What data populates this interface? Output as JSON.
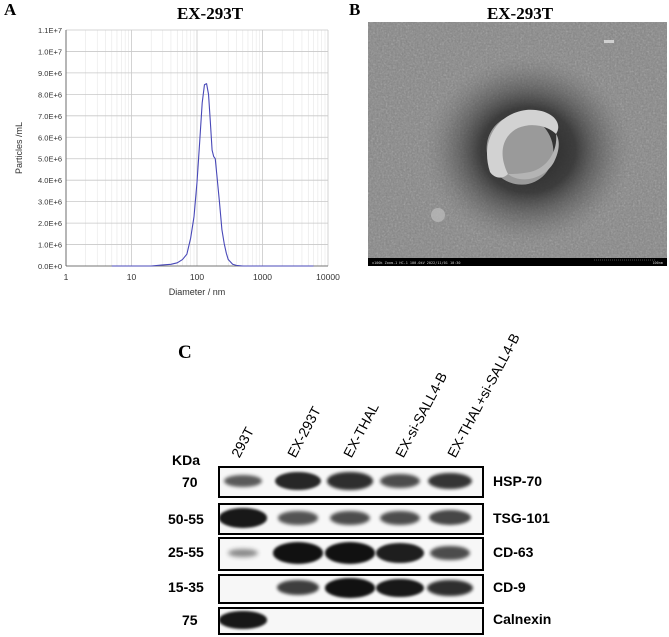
{
  "panels": {
    "a": {
      "letter": "A",
      "title": "EX-293T"
    },
    "b": {
      "letter": "B",
      "title": "EX-293T"
    },
    "c": {
      "letter": "C"
    }
  },
  "chart_data": {
    "type": "line",
    "title": "EX-293T",
    "xlabel": "Diameter / nm",
    "ylabel": "Particles /mL",
    "x_scale": "log",
    "xlim": [
      1,
      10000
    ],
    "ylim": [
      0,
      11000000
    ],
    "x_ticks": [
      "1",
      "10",
      "100",
      "1000",
      "10000"
    ],
    "y_ticks": [
      "0.0E+0",
      "1.0E+6",
      "2.0E+6",
      "3.0E+6",
      "4.0E+6",
      "5.0E+6",
      "6.0E+6",
      "7.0E+6",
      "8.0E+6",
      "9.0E+6",
      "1.0E+7",
      "1.1E+7"
    ],
    "grid": true,
    "series": [
      {
        "color": "#4848b8",
        "x": [
          5,
          10,
          20,
          30,
          40,
          50,
          60,
          70,
          80,
          90,
          100,
          110,
          120,
          130,
          140,
          150,
          160,
          170,
          180,
          190,
          200,
          220,
          240,
          260,
          280,
          300,
          350,
          400,
          500,
          700,
          1000,
          2000,
          6000
        ],
        "y": [
          0,
          0,
          0,
          50000,
          80000,
          150000,
          300000,
          550000,
          1300000,
          2300000,
          3900000,
          5800000,
          7600000,
          8450000,
          8500000,
          8000000,
          6700000,
          5400000,
          5100000,
          5000000,
          4300000,
          3000000,
          1700000,
          1050000,
          600000,
          300000,
          80000,
          30000,
          0,
          0,
          0,
          0,
          0
        ]
      }
    ]
  },
  "tem_image": {
    "caption": "x100k Zoom-1 HC-1 100.0kV 2022/11/01 10:30",
    "scale_label": "100nm",
    "colors": {
      "background": "#7d7d7d",
      "dark_halo": "#2a2a2a",
      "vesicle_rim": "#c9c9c9"
    }
  },
  "western_blot": {
    "kda_label": "KDa",
    "lanes": [
      "293T",
      "EX-293T",
      "EX-THAL",
      "EX-si-SALL4-B",
      "EX-THAL+si-SALL4-B"
    ],
    "rows": [
      {
        "mw": "70",
        "protein": "HSP-70",
        "intensities": [
          0.5,
          0.85,
          0.8,
          0.6,
          0.75
        ]
      },
      {
        "mw": "50-55",
        "protein": "TSG-101",
        "intensities": [
          0.95,
          0.55,
          0.6,
          0.6,
          0.65
        ]
      },
      {
        "mw": "25-55",
        "protein": "CD-63",
        "intensities": [
          0.2,
          1.0,
          1.0,
          0.9,
          0.6
        ]
      },
      {
        "mw": "15-35",
        "protein": "CD-9",
        "intensities": [
          0.0,
          0.7,
          1.0,
          0.95,
          0.8
        ]
      },
      {
        "mw": "75",
        "protein": "Calnexin",
        "intensities": [
          0.95,
          0.0,
          0.0,
          0.0,
          0.0
        ]
      }
    ]
  }
}
